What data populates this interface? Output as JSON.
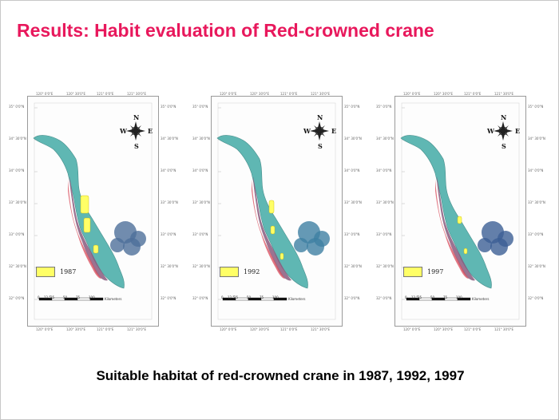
{
  "slide": {
    "title": "Results: Habit evaluation of Red-crowned crane",
    "caption": "Suitable habitat of red-crowned crane in 1987, 1992, 1997",
    "title_color": "#e8185c"
  },
  "compass": {
    "n": "N",
    "s": "S",
    "e": "E",
    "w": "W"
  },
  "axis_ticks": {
    "top": [
      "120° 0'0\"E",
      "120° 30'0\"E",
      "121° 0'0\"E",
      "121° 30'0\"E"
    ],
    "left": [
      "35° 0'0\"N",
      "34° 30'0\"N",
      "34° 0'0\"N",
      "33° 30'0\"N",
      "33° 0'0\"N",
      "32° 30'0\"N",
      "32° 0'0\"N"
    ]
  },
  "scale_bar": {
    "labels": [
      "0",
      "12.5",
      "25",
      "50",
      "75",
      "100"
    ],
    "unit": "Kilometers"
  },
  "maps": [
    {
      "year": "1987",
      "legend_color": "#ffff66"
    },
    {
      "year": "1992",
      "legend_color": "#ffff66"
    },
    {
      "year": "1997",
      "legend_color": "#ffff66"
    }
  ]
}
